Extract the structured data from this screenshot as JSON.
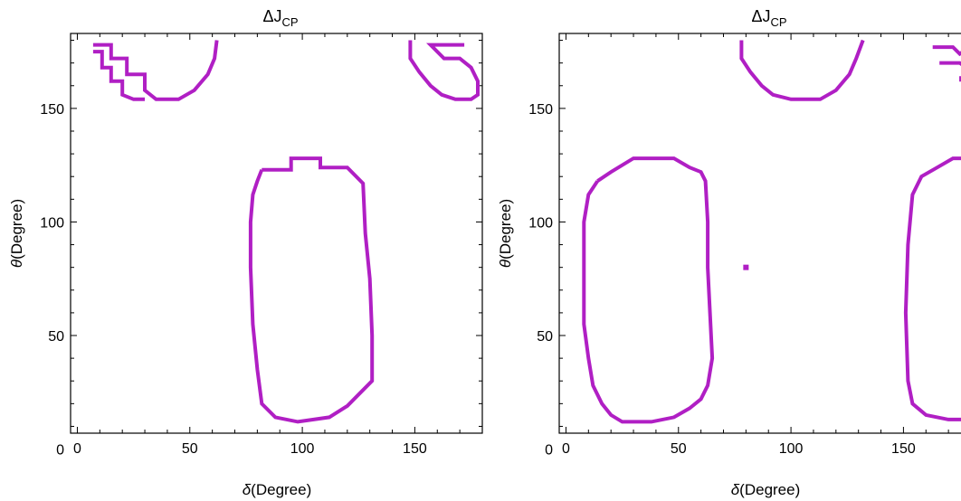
{
  "chart_data": [
    {
      "type": "contour",
      "title_main": "ΔJ",
      "title_sub": "CP",
      "xlabel_var": "δ",
      "xlabel_unit": "(Degree)",
      "ylabel_var": "θ",
      "ylabel_unit": "(Degree)",
      "xlim": [
        -3,
        180
      ],
      "ylim": [
        7,
        183
      ],
      "xticks": [
        0,
        50,
        100,
        150
      ],
      "yticks": [
        0,
        50,
        100,
        150
      ],
      "color": "#b01fc4",
      "contours": [
        [
          [
            7,
            178
          ],
          [
            15,
            178
          ],
          [
            15,
            172
          ],
          [
            22,
            172
          ],
          [
            22,
            165
          ],
          [
            30,
            165
          ],
          [
            30,
            158
          ],
          [
            35,
            154
          ],
          [
            45,
            154
          ],
          [
            52,
            158
          ],
          [
            58,
            165
          ],
          [
            61,
            172
          ],
          [
            62,
            180
          ]
        ],
        [
          [
            7,
            175
          ],
          [
            11,
            175
          ],
          [
            11,
            168
          ],
          [
            15,
            168
          ],
          [
            15,
            162
          ],
          [
            20,
            162
          ],
          [
            20,
            156
          ],
          [
            25,
            154
          ],
          [
            30,
            154
          ]
        ],
        [
          [
            148,
            180
          ],
          [
            148,
            172
          ],
          [
            152,
            166
          ],
          [
            157,
            160
          ],
          [
            162,
            156
          ],
          [
            168,
            154
          ],
          [
            175,
            154
          ],
          [
            178,
            156
          ],
          [
            178,
            162
          ],
          [
            175,
            168
          ],
          [
            170,
            172
          ],
          [
            163,
            172
          ],
          [
            157,
            178
          ],
          [
            172,
            178
          ]
        ],
        [
          [
            82,
            123
          ],
          [
            95,
            123
          ],
          [
            95,
            128
          ],
          [
            108,
            128
          ],
          [
            108,
            124
          ],
          [
            120,
            124
          ],
          [
            127,
            117
          ],
          [
            128,
            95
          ],
          [
            130,
            75
          ],
          [
            131,
            50
          ],
          [
            131,
            30
          ],
          [
            126,
            25
          ],
          [
            120,
            19
          ],
          [
            112,
            14
          ],
          [
            98,
            12
          ],
          [
            88,
            14
          ],
          [
            82,
            20
          ],
          [
            80,
            35
          ],
          [
            78,
            55
          ],
          [
            77,
            80
          ],
          [
            77,
            100
          ],
          [
            78,
            112
          ],
          [
            80,
            118
          ],
          [
            82,
            123
          ]
        ]
      ],
      "spots": []
    },
    {
      "type": "contour",
      "title_main": "ΔJ",
      "title_sub": "CP",
      "xlabel_var": "δ",
      "xlabel_unit": "(Degree)",
      "ylabel_var": "θ",
      "ylabel_unit": "(Degree)",
      "xlim": [
        -3,
        180
      ],
      "ylim": [
        7,
        183
      ],
      "xticks": [
        0,
        50,
        100,
        150
      ],
      "yticks": [
        0,
        50,
        100,
        150
      ],
      "color": "#b01fc4",
      "contours": [
        [
          [
            78,
            180
          ],
          [
            78,
            172
          ],
          [
            82,
            166
          ],
          [
            87,
            160
          ],
          [
            92,
            156
          ],
          [
            100,
            154
          ],
          [
            113,
            154
          ],
          [
            120,
            158
          ],
          [
            126,
            165
          ],
          [
            129,
            172
          ],
          [
            132,
            180
          ]
        ],
        [
          [
            163,
            177
          ],
          [
            172,
            177
          ],
          [
            175,
            174
          ],
          [
            178,
            176
          ],
          [
            180,
            178
          ]
        ],
        [
          [
            166,
            170
          ],
          [
            175,
            170
          ],
          [
            178,
            168
          ],
          [
            180,
            170
          ]
        ],
        [
          [
            14,
            118
          ],
          [
            20,
            122
          ],
          [
            30,
            128
          ],
          [
            48,
            128
          ],
          [
            55,
            124
          ],
          [
            60,
            122
          ],
          [
            62,
            118
          ],
          [
            63,
            100
          ],
          [
            63,
            80
          ],
          [
            64,
            60
          ],
          [
            65,
            40
          ],
          [
            63,
            28
          ],
          [
            60,
            22
          ],
          [
            55,
            18
          ],
          [
            48,
            14
          ],
          [
            38,
            12
          ],
          [
            25,
            12
          ],
          [
            20,
            15
          ],
          [
            16,
            20
          ],
          [
            12,
            28
          ],
          [
            10,
            40
          ],
          [
            8,
            55
          ],
          [
            8,
            80
          ],
          [
            8,
            100
          ],
          [
            10,
            112
          ],
          [
            14,
            118
          ]
        ],
        [
          [
            180,
            128
          ],
          [
            172,
            128
          ],
          [
            165,
            124
          ],
          [
            158,
            120
          ],
          [
            154,
            112
          ],
          [
            152,
            90
          ],
          [
            151,
            60
          ],
          [
            152,
            30
          ],
          [
            154,
            20
          ],
          [
            160,
            15
          ],
          [
            170,
            13
          ],
          [
            180,
            13
          ]
        ]
      ],
      "spots": [
        [
          80,
          80
        ],
        [
          176,
          163
        ]
      ]
    }
  ]
}
